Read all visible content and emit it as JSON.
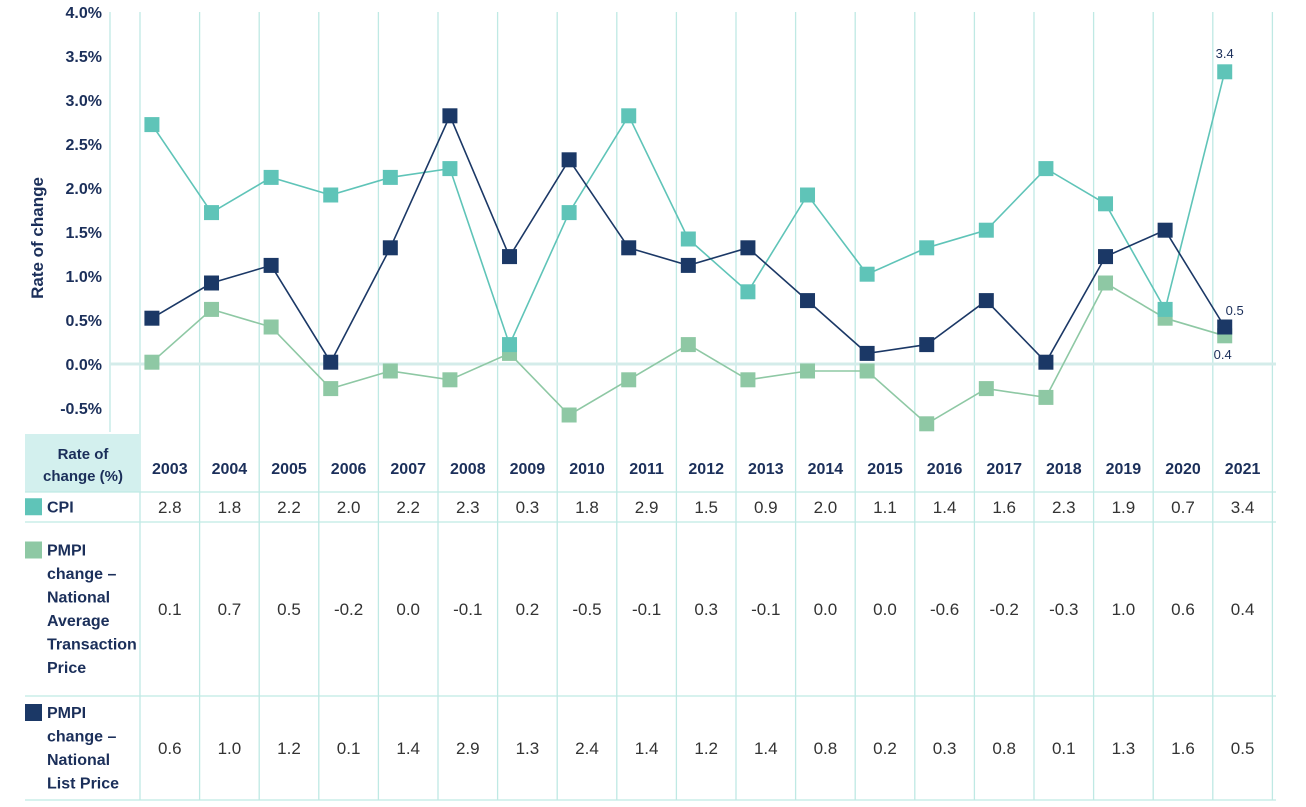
{
  "chart_data": {
    "type": "line",
    "ylabel": "Rate of change",
    "ylim": [
      -0.75,
      4.0
    ],
    "yticks": [
      "4.0%",
      "3.5%",
      "3.0%",
      "2.5%",
      "2.0%",
      "1.5%",
      "1.0%",
      "0.5%",
      "0.0%",
      "-0.5%"
    ],
    "ytick_values": [
      4.0,
      3.5,
      3.0,
      2.5,
      2.0,
      1.5,
      1.0,
      0.5,
      0.0,
      -0.5
    ],
    "grid": "vertical",
    "categories": [
      "2003",
      "2004",
      "2005",
      "2006",
      "2007",
      "2008",
      "2009",
      "2010",
      "2011",
      "2012",
      "2013",
      "2014",
      "2015",
      "2016",
      "2017",
      "2018",
      "2019",
      "2020",
      "2021"
    ],
    "x_offset_fraction": 0.2,
    "series": [
      {
        "key": "cpi",
        "name": "CPI",
        "color": "#5fc4b8",
        "values": [
          2.8,
          1.8,
          2.2,
          2.0,
          2.2,
          2.3,
          0.3,
          1.8,
          2.9,
          1.5,
          0.9,
          2.0,
          1.1,
          1.4,
          1.6,
          2.3,
          1.9,
          0.7,
          3.4
        ],
        "end_label": "3.4"
      },
      {
        "key": "transaction",
        "name_lines": [
          "PMPI",
          "change –",
          "National",
          "Average",
          "Transaction",
          "Price"
        ],
        "color": "#8ec8a4",
        "values": [
          0.1,
          0.7,
          0.5,
          -0.2,
          0.0,
          -0.1,
          0.2,
          -0.5,
          -0.1,
          0.3,
          -0.1,
          0.0,
          0.0,
          -0.6,
          -0.2,
          -0.3,
          1.0,
          0.6,
          0.4
        ],
        "end_label": "0.4"
      },
      {
        "key": "list",
        "name_lines": [
          "PMPI",
          "change –",
          "National",
          "List Price"
        ],
        "color": "#1b3866",
        "values": [
          0.6,
          1.0,
          1.2,
          0.1,
          1.4,
          2.9,
          1.3,
          2.4,
          1.4,
          1.2,
          1.4,
          0.8,
          0.2,
          0.3,
          0.8,
          0.1,
          1.3,
          1.6,
          0.5
        ],
        "end_label": "0.5"
      }
    ],
    "table": {
      "header_lines": [
        "Rate of",
        "change (%)"
      ],
      "header_bg": "#d3f0ee",
      "rows": [
        {
          "key": "cpi",
          "label_lines": [
            "CPI"
          ],
          "cells": [
            "2.8",
            "1.8",
            "2.2",
            "2.0",
            "2.2",
            "2.3",
            "0.3",
            "1.8",
            "2.9",
            "1.5",
            "0.9",
            "2.0",
            "1.1",
            "1.4",
            "1.6",
            "2.3",
            "1.9",
            "0.7",
            "3.4"
          ]
        },
        {
          "key": "transaction",
          "label_lines": [
            "PMPI",
            "change –",
            "National",
            "Average",
            "Transaction",
            "Price"
          ],
          "cells": [
            "0.1",
            "0.7",
            "0.5",
            "-0.2",
            "0.0",
            "-0.1",
            "0.2",
            "-0.5",
            "-0.1",
            "0.3",
            "-0.1",
            "0.0",
            "0.0",
            "-0.6",
            "-0.2",
            "-0.3",
            "1.0",
            "0.6",
            "0.4"
          ]
        },
        {
          "key": "list",
          "label_lines": [
            "PMPI",
            "change –",
            "National",
            "List Price"
          ],
          "cells": [
            "0.6",
            "1.0",
            "1.2",
            "0.1",
            "1.4",
            "2.9",
            "1.3",
            "2.4",
            "1.4",
            "1.2",
            "1.4",
            "0.8",
            "0.2",
            "0.3",
            "0.8",
            "0.1",
            "1.3",
            "1.6",
            "0.5"
          ]
        }
      ]
    }
  }
}
